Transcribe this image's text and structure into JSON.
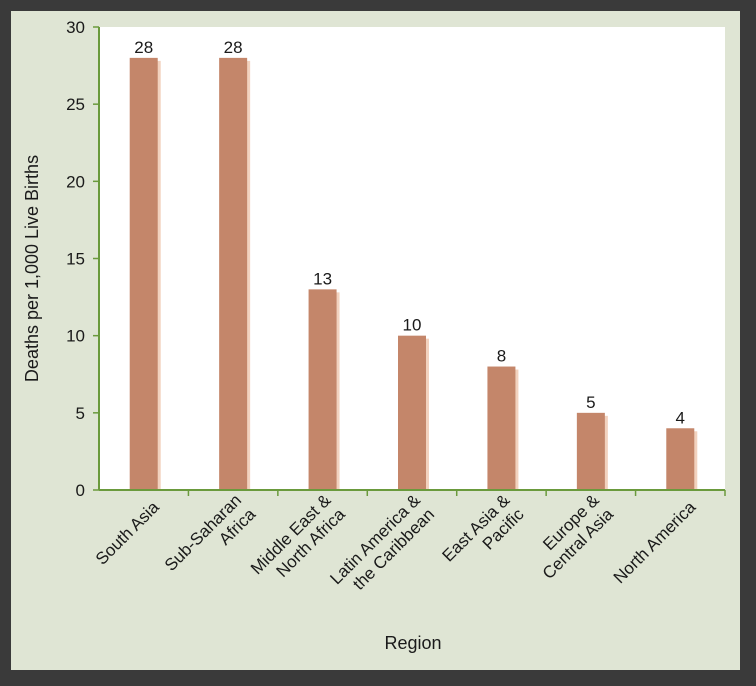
{
  "chart_data": {
    "type": "bar",
    "title": "",
    "xlabel": "Region",
    "ylabel": "Deaths per 1,000 Live Births",
    "ylim": [
      0,
      30
    ],
    "yticks": [
      0,
      5,
      10,
      15,
      20,
      25,
      30
    ],
    "grid": false,
    "categories": [
      [
        "South Asia"
      ],
      [
        "Sub-Saharan",
        "Africa"
      ],
      [
        "Middle East &",
        "North Africa"
      ],
      [
        "Latin America &",
        "the Caribbean"
      ],
      [
        "East Asia &",
        "Pacific"
      ],
      [
        "Europe &",
        "Central Asia"
      ],
      [
        "North America"
      ]
    ],
    "values": [
      28,
      28,
      13,
      10,
      8,
      5,
      4
    ],
    "data_labels": [
      "28",
      "28",
      "13",
      "10",
      "8",
      "5",
      "4"
    ]
  },
  "colors": {
    "bar": "#c4866a",
    "bar_shadow": "#f2d2bf",
    "axis": "#6a9a3c",
    "plot_bg": "#ffffff",
    "frame_bg": "#dfe5d4"
  }
}
